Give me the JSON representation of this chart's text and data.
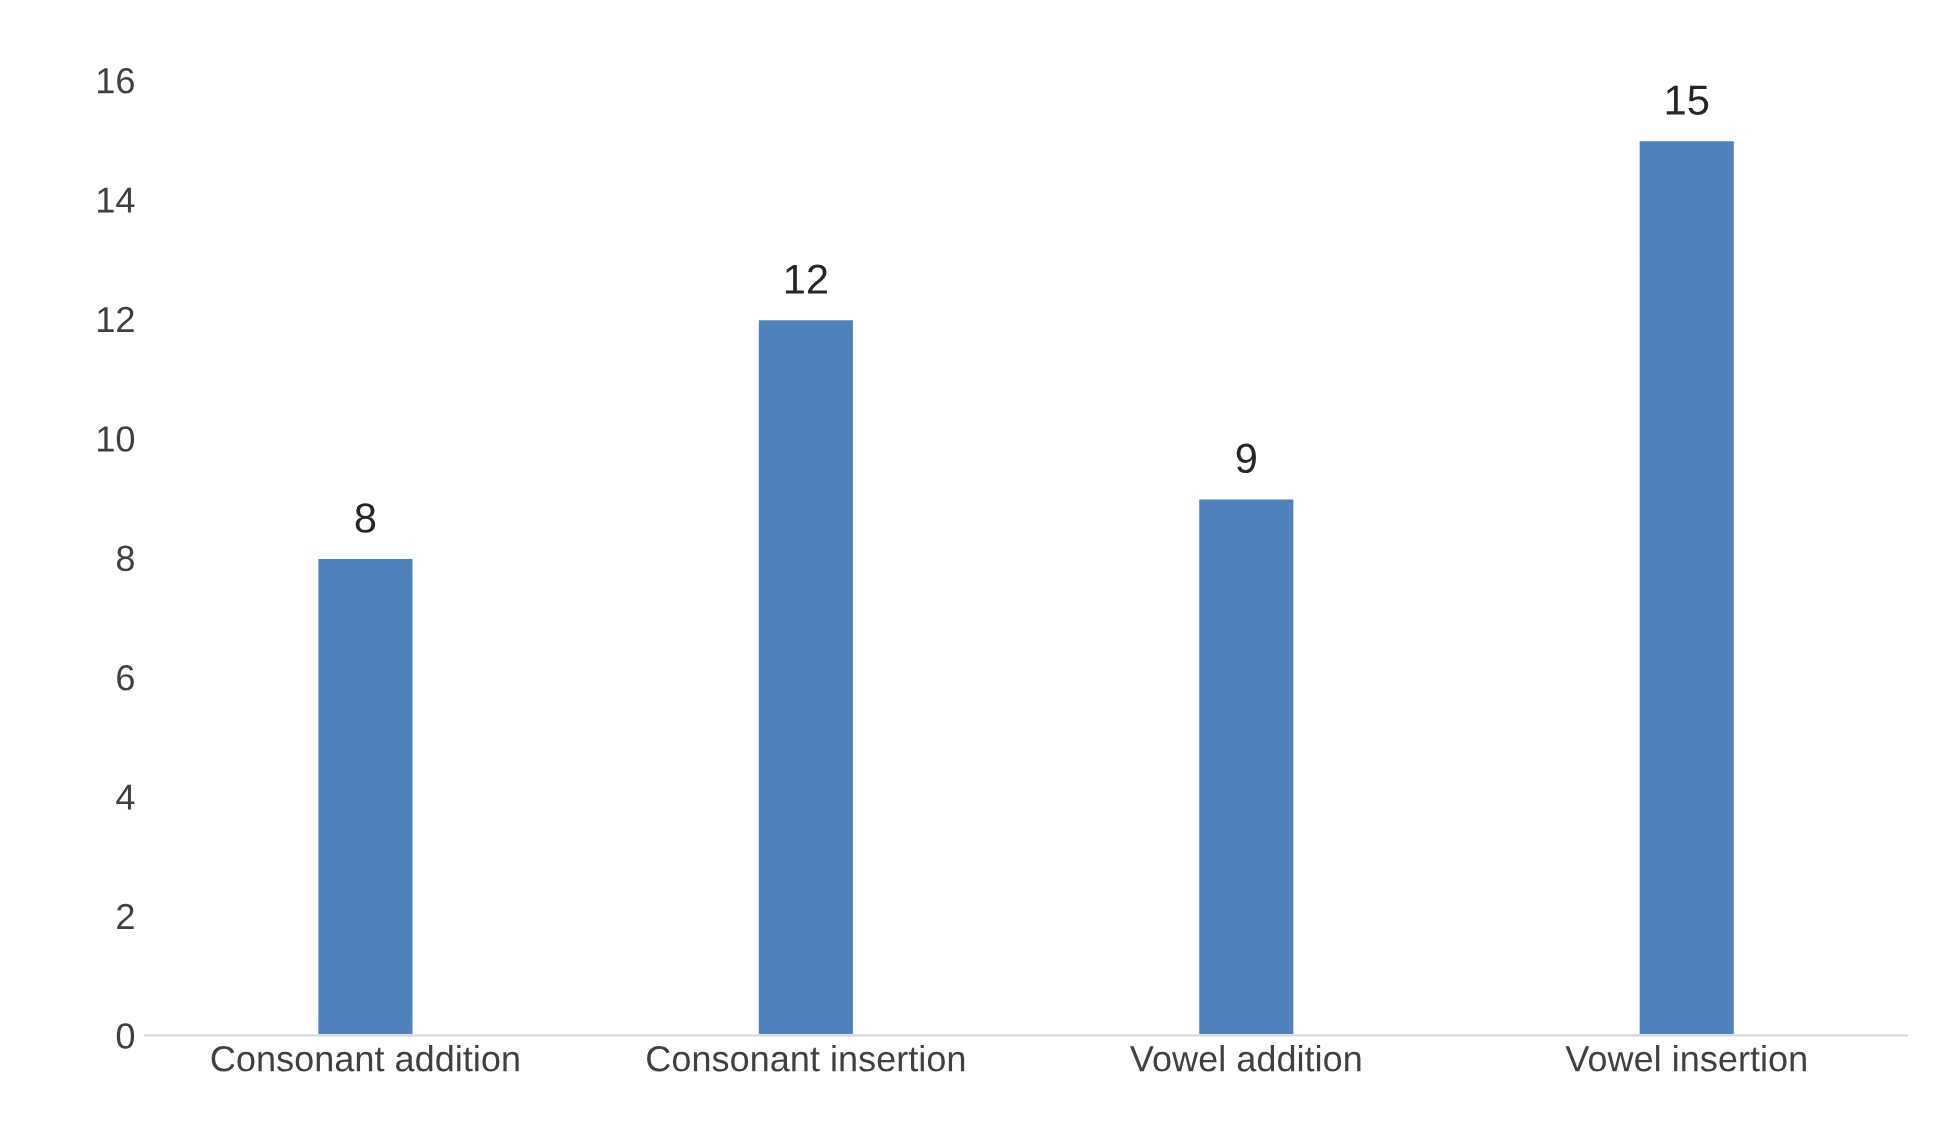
{
  "chart_data": {
    "type": "bar",
    "categories": [
      "Consonant addition",
      "Consonant insertion",
      "Vowel addition",
      "Vowel insertion"
    ],
    "values": [
      8,
      12,
      9,
      15
    ],
    "color": "#4f81bd",
    "ylim": [
      0,
      16
    ],
    "yticks": [
      0,
      2,
      4,
      6,
      8,
      10,
      12,
      14,
      16
    ],
    "data_labels": true,
    "grid": false,
    "legend": false
  }
}
